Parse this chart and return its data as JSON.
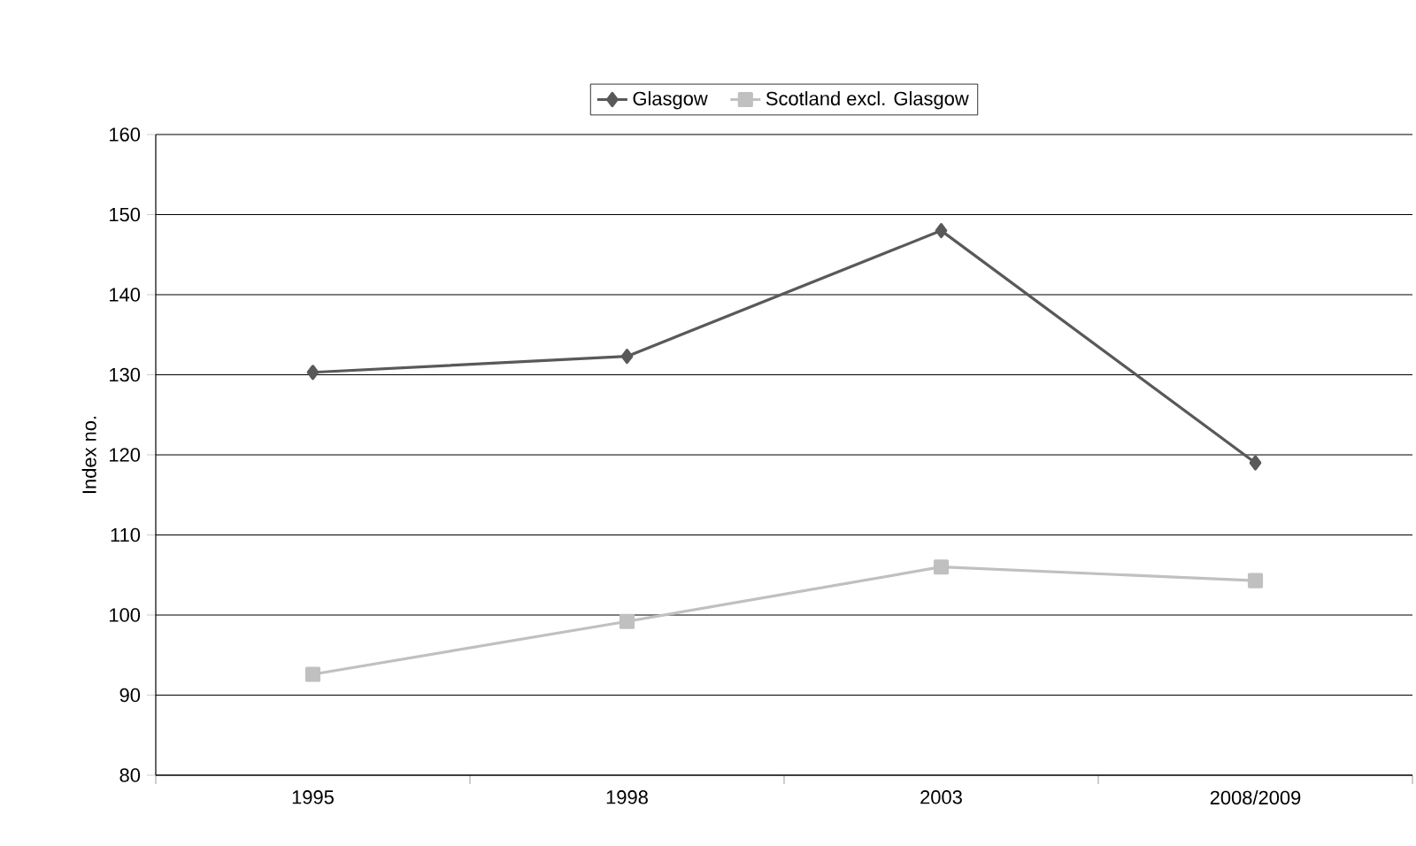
{
  "chart_data": {
    "type": "line",
    "ylabel": "Index no.",
    "categories": [
      "1995",
      "1998",
      "2003",
      "2008/2009"
    ],
    "series": [
      {
        "name": "Glasgow",
        "color": "#595959",
        "marker": "diamond",
        "values": [
          130.3,
          132.3,
          148,
          119
        ]
      },
      {
        "name": "Scotland excl. Glasgow",
        "color": "#c0c0c0",
        "marker": "square",
        "values": [
          92.6,
          99.2,
          106,
          104.3
        ]
      }
    ],
    "ylim": [
      80,
      160
    ],
    "yticks": [
      80,
      90,
      100,
      110,
      120,
      130,
      140,
      150,
      160
    ],
    "grid": "y",
    "legend": "top"
  }
}
